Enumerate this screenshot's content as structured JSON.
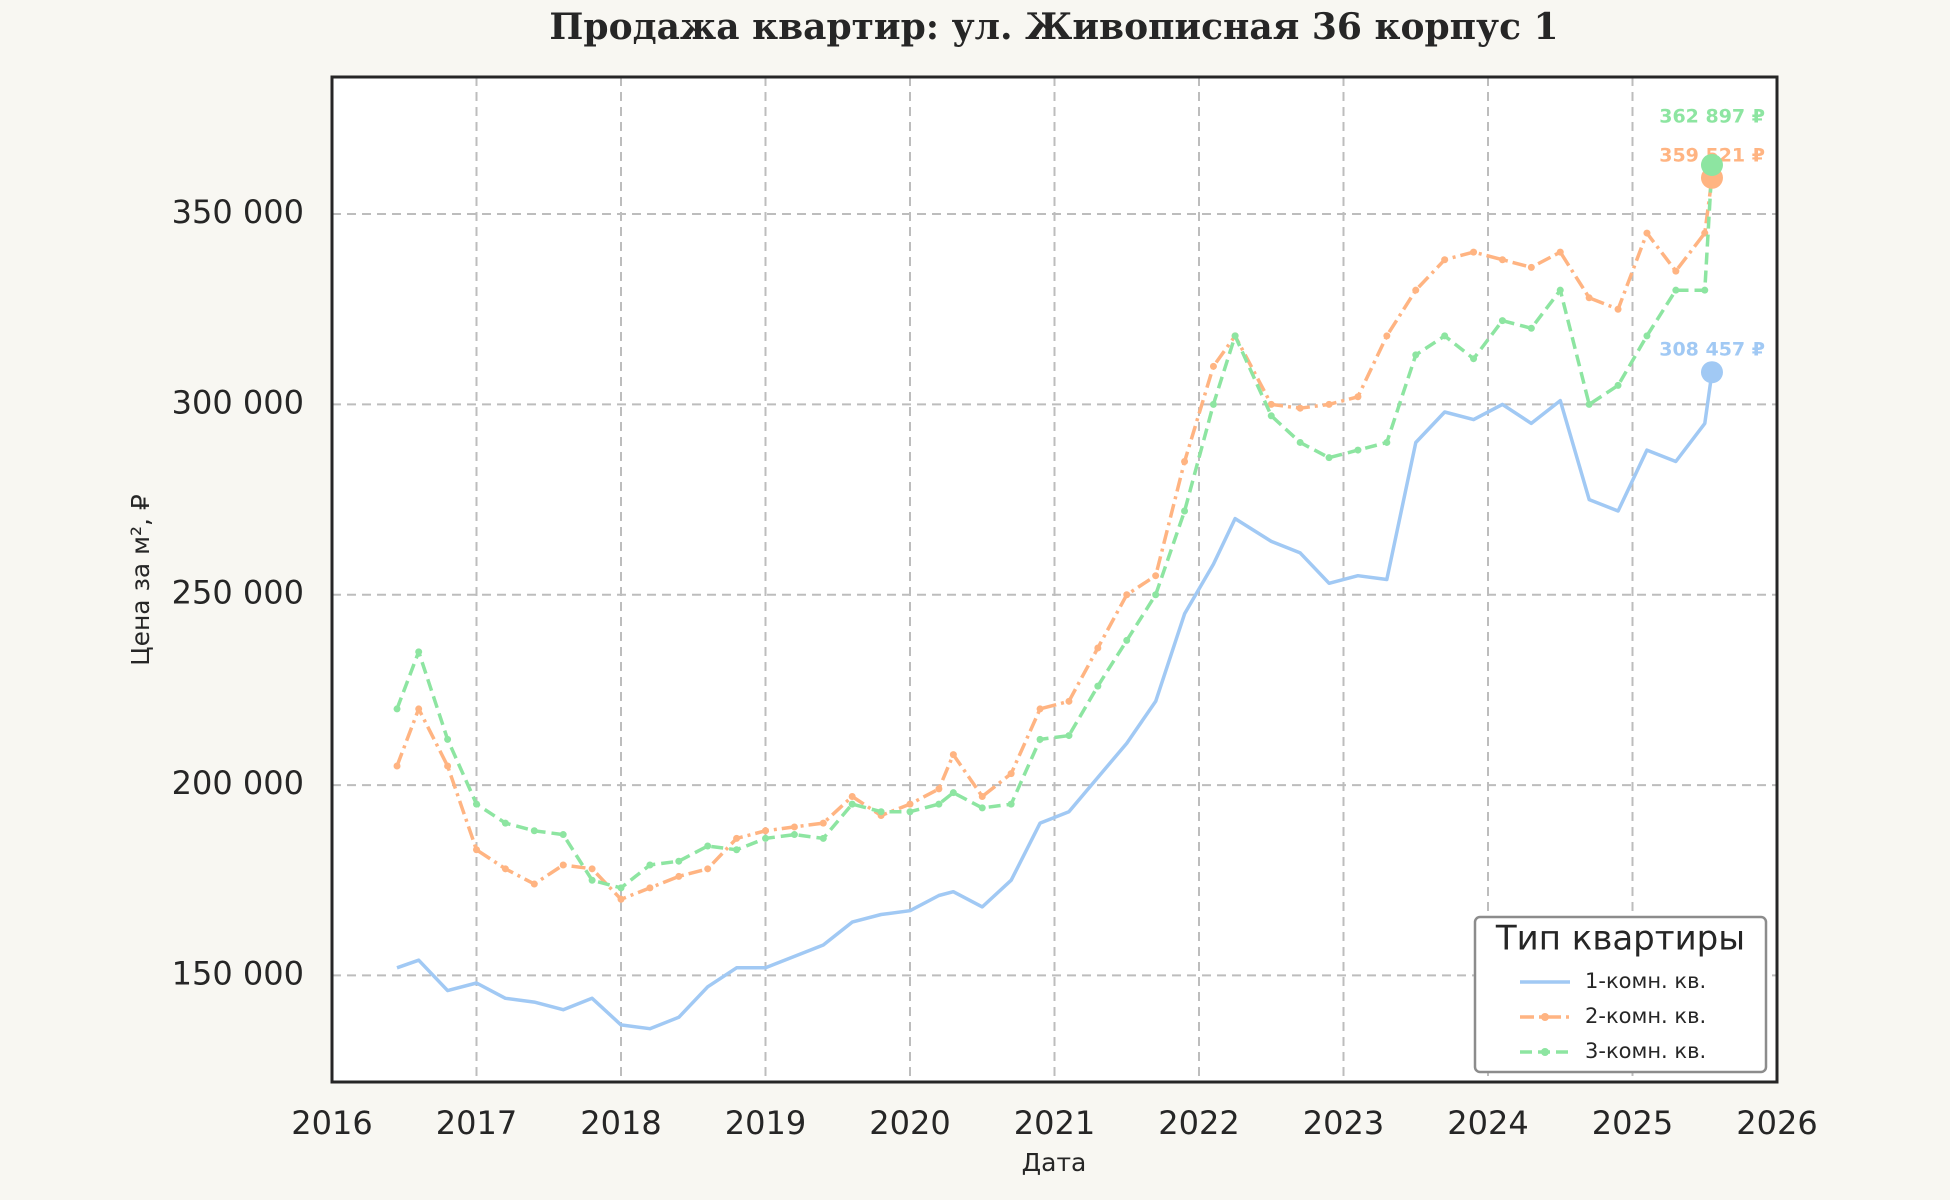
{
  "chart_data": {
    "type": "line",
    "title": "Продажа квартир: ул. Живописная 36 корпус 1",
    "xlabel": "Дата",
    "ylabel": "Цена за м², ₽",
    "x": [
      2016.45,
      2016.6,
      2016.8,
      2017.0,
      2017.2,
      2017.4,
      2017.6,
      2017.8,
      2018.0,
      2018.2,
      2018.4,
      2018.6,
      2018.8,
      2019.0,
      2019.2,
      2019.4,
      2019.6,
      2019.8,
      2020.0,
      2020.2,
      2020.3,
      2020.5,
      2020.7,
      2020.9,
      2021.1,
      2021.3,
      2021.5,
      2021.7,
      2021.9,
      2022.1,
      2022.25,
      2022.5,
      2022.7,
      2022.9,
      2023.1,
      2023.3,
      2023.5,
      2023.7,
      2023.9,
      2024.1,
      2024.3,
      2024.5,
      2024.7,
      2024.9,
      2025.1,
      2025.3,
      2025.5,
      2025.55
    ],
    "series": [
      {
        "name": "1-комн. кв.",
        "color": "#a1c9f4",
        "style": "solid",
        "markers": false,
        "end_label": "308 457 ₽",
        "values": [
          152000,
          154000,
          146000,
          148000,
          144000,
          143000,
          141000,
          144000,
          137000,
          136000,
          139000,
          147000,
          152000,
          152000,
          155000,
          158000,
          164000,
          166000,
          167000,
          171000,
          172000,
          168000,
          175000,
          190000,
          193000,
          202000,
          211000,
          222000,
          245000,
          258000,
          270000,
          264000,
          261000,
          253000,
          255000,
          254000,
          290000,
          298000,
          296000,
          300000,
          295000,
          301000,
          275000,
          272000,
          288000,
          285000,
          295000,
          308457
        ]
      },
      {
        "name": "2-комн. кв.",
        "color": "#ffb482",
        "style": "dashdot",
        "markers": true,
        "end_label": "359 521 ₽",
        "values": [
          205000,
          220000,
          205000,
          183000,
          178000,
          174000,
          179000,
          178000,
          170000,
          173000,
          176000,
          178000,
          186000,
          188000,
          189000,
          190000,
          197000,
          192000,
          195000,
          199000,
          208000,
          197000,
          203000,
          220000,
          222000,
          236000,
          250000,
          255000,
          285000,
          310000,
          318000,
          300000,
          299000,
          300000,
          302000,
          318000,
          330000,
          338000,
          340000,
          338000,
          336000,
          340000,
          328000,
          325000,
          345000,
          335000,
          345000,
          359521
        ]
      },
      {
        "name": "3-комн. кв.",
        "color": "#8de5a1",
        "style": "dashed",
        "markers": true,
        "end_label": "362 897 ₽",
        "values": [
          220000,
          235000,
          212000,
          195000,
          190000,
          188000,
          187000,
          175000,
          173000,
          179000,
          180000,
          184000,
          183000,
          186000,
          187000,
          186000,
          195000,
          193000,
          193000,
          195000,
          198000,
          194000,
          195000,
          212000,
          213000,
          226000,
          238000,
          250000,
          272000,
          300000,
          318000,
          297000,
          290000,
          286000,
          288000,
          290000,
          313000,
          318000,
          312000,
          322000,
          320000,
          330000,
          300000,
          305000,
          318000,
          330000,
          330000,
          362897
        ]
      }
    ],
    "xlim": [
      2016,
      2026
    ],
    "xticks": [
      2016,
      2017,
      2018,
      2019,
      2020,
      2021,
      2022,
      2023,
      2024,
      2025,
      2026
    ],
    "ylim": [
      122000,
      386000
    ],
    "yticks": [
      {
        "value": 150000,
        "label": "150 000"
      },
      {
        "value": 200000,
        "label": "200 000"
      },
      {
        "value": 250000,
        "label": "250 000"
      },
      {
        "value": 300000,
        "label": "300 000"
      },
      {
        "value": 350000,
        "label": "350 000"
      }
    ],
    "grid": true,
    "legend_title": "Тип квартиры",
    "legend_position": "lower right"
  }
}
